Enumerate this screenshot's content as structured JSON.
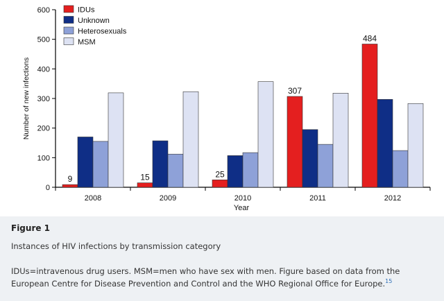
{
  "figure": {
    "label": "Figure 1",
    "title": "Instances of HIV infections by transmission category",
    "caption": "IDUs=intravenous drug users. MSM=men who have sex with men. Figure based on data from the European Centre for Disease Prevention and Control and the WHO Regional Office for Europe.",
    "reference": "15"
  },
  "chart_data": {
    "type": "bar",
    "title": "",
    "xlabel": "Year",
    "ylabel": "Number of new infections",
    "ylim": [
      0,
      600
    ],
    "yticks": [
      0,
      100,
      200,
      300,
      400,
      500,
      600
    ],
    "grid": false,
    "legend_position": "top-left",
    "categories": [
      "2008",
      "2009",
      "2010",
      "2011",
      "2012"
    ],
    "series": [
      {
        "name": "IDUs",
        "color": "#e41f1f",
        "values": [
          9,
          15,
          25,
          307,
          484
        ],
        "labels": [
          "9",
          "15",
          "25",
          "307",
          "484"
        ]
      },
      {
        "name": "Unknown",
        "color": "#0f2e86",
        "values": [
          170,
          157,
          107,
          195,
          297
        ]
      },
      {
        "name": "Heterosexuals",
        "color": "#8ea1d8",
        "values": [
          155,
          112,
          117,
          145,
          124
        ]
      },
      {
        "name": "MSM",
        "color": "#dde2f3",
        "values": [
          319,
          323,
          357,
          318,
          283
        ]
      }
    ]
  }
}
